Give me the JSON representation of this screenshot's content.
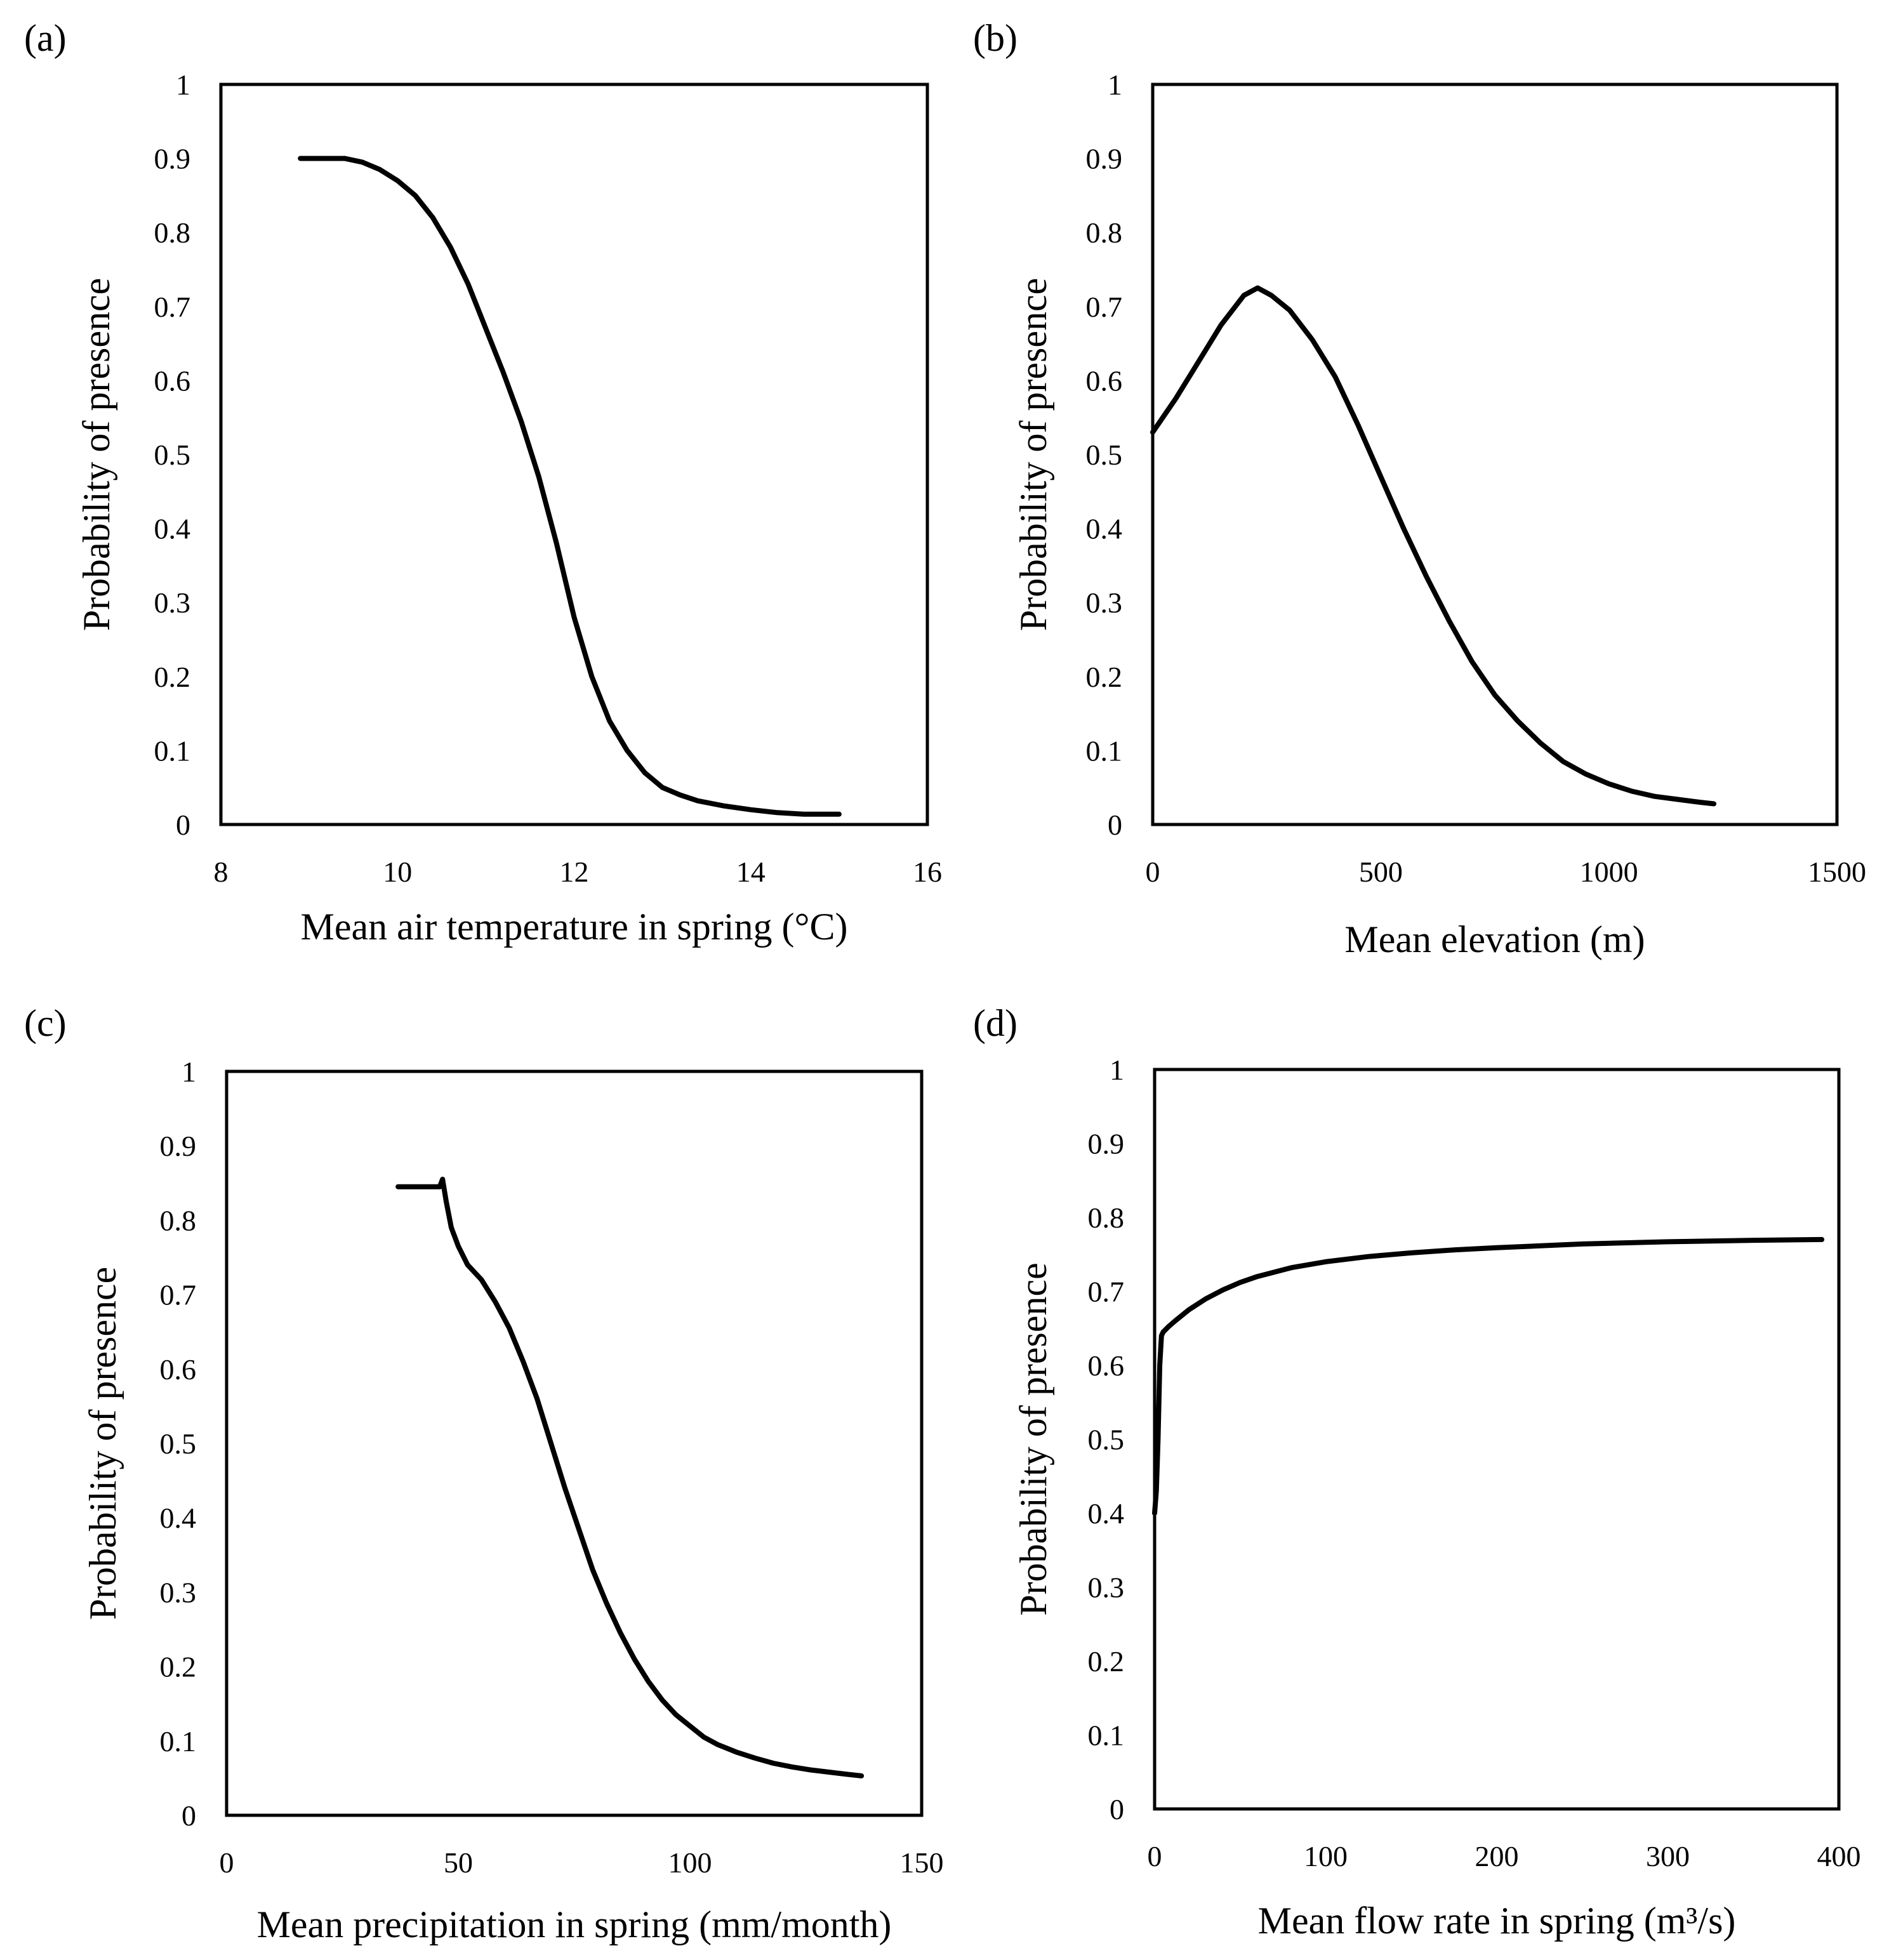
{
  "chart_data": [
    {
      "type": "line",
      "panel": "(a)",
      "title": "",
      "xlabel": "Mean air temperature in spring (°C)",
      "ylabel": "Probability of presence",
      "xlim": [
        8,
        16
      ],
      "ylim": [
        0,
        1
      ],
      "xticks": [
        "8",
        "10",
        "12",
        "14",
        "16"
      ],
      "yticks": [
        "0",
        "0.1",
        "0.2",
        "0.3",
        "0.4",
        "0.5",
        "0.6",
        "0.7",
        "0.8",
        "0.9",
        "1"
      ],
      "series": [
        {
          "name": "Probability of presence",
          "color": "#000000",
          "x": [
            8.9,
            9.2,
            9.4,
            9.6,
            9.8,
            10.0,
            10.2,
            10.4,
            10.6,
            10.8,
            11.0,
            11.2,
            11.4,
            11.6,
            11.8,
            12.0,
            12.2,
            12.4,
            12.6,
            12.8,
            13.0,
            13.2,
            13.4,
            13.7,
            14.0,
            14.3,
            14.6,
            15.0
          ],
          "y": [
            0.9,
            0.9,
            0.9,
            0.895,
            0.885,
            0.87,
            0.85,
            0.82,
            0.78,
            0.73,
            0.67,
            0.61,
            0.545,
            0.47,
            0.38,
            0.28,
            0.2,
            0.14,
            0.1,
            0.07,
            0.05,
            0.04,
            0.032,
            0.025,
            0.02,
            0.016,
            0.014,
            0.014
          ]
        }
      ]
    },
    {
      "type": "line",
      "panel": "(b)",
      "title": "",
      "xlabel": "Mean elevation (m)",
      "ylabel": "Probability of presence",
      "xlim": [
        0,
        1500
      ],
      "ylim": [
        0,
        1
      ],
      "xticks": [
        "0",
        "500",
        "1000",
        "1500"
      ],
      "yticks": [
        "0",
        "0.1",
        "0.2",
        "0.3",
        "0.4",
        "0.5",
        "0.6",
        "0.7",
        "0.8",
        "0.9",
        "1"
      ],
      "series": [
        {
          "name": "Probability of presence",
          "color": "#000000",
          "x": [
            0,
            50,
            100,
            150,
            200,
            230,
            260,
            300,
            350,
            400,
            450,
            500,
            550,
            600,
            650,
            700,
            750,
            800,
            850,
            900,
            950,
            1000,
            1050,
            1100,
            1150,
            1200,
            1230
          ],
          "y": [
            0.53,
            0.575,
            0.625,
            0.675,
            0.715,
            0.725,
            0.715,
            0.695,
            0.655,
            0.605,
            0.54,
            0.47,
            0.4,
            0.335,
            0.275,
            0.22,
            0.175,
            0.14,
            0.11,
            0.085,
            0.068,
            0.055,
            0.045,
            0.038,
            0.034,
            0.03,
            0.028
          ]
        }
      ]
    },
    {
      "type": "line",
      "panel": "(c)",
      "title": "",
      "xlabel": "Mean precipitation in spring (mm/month)",
      "ylabel": "Probability of presence",
      "xlim": [
        0,
        150
      ],
      "ylim": [
        0,
        1
      ],
      "xticks": [
        "0",
        "50",
        "100",
        "150"
      ],
      "yticks": [
        "0",
        "0.1",
        "0.2",
        "0.3",
        "0.4",
        "0.5",
        "0.6",
        "0.7",
        "0.8",
        "0.9",
        "1"
      ],
      "series": [
        {
          "name": "Probability of presence",
          "color": "#000000",
          "x": [
            37,
            40,
            44,
            46,
            46.6,
            47.4,
            48.5,
            50,
            52,
            55,
            58,
            61,
            64,
            67,
            70,
            73,
            76,
            79,
            82,
            85,
            88,
            91,
            94,
            97,
            100,
            103,
            106,
            110,
            114,
            118,
            122,
            126,
            130,
            134,
            137
          ],
          "y": [
            0.845,
            0.845,
            0.845,
            0.845,
            0.855,
            0.825,
            0.79,
            0.765,
            0.74,
            0.72,
            0.69,
            0.655,
            0.61,
            0.56,
            0.5,
            0.44,
            0.385,
            0.33,
            0.285,
            0.245,
            0.21,
            0.18,
            0.155,
            0.135,
            0.12,
            0.105,
            0.095,
            0.085,
            0.077,
            0.07,
            0.065,
            0.061,
            0.058,
            0.055,
            0.053
          ]
        }
      ]
    },
    {
      "type": "line",
      "panel": "(d)",
      "title": "",
      "xlabel": "Mean flow rate in spring (m³/s)",
      "ylabel": "Probability of presence",
      "xlim": [
        0,
        400
      ],
      "ylim": [
        0,
        1
      ],
      "xticks": [
        "0",
        "100",
        "200",
        "300",
        "400"
      ],
      "yticks": [
        "0",
        "0.1",
        "0.2",
        "0.3",
        "0.4",
        "0.5",
        "0.6",
        "0.7",
        "0.8",
        "0.9",
        "1"
      ],
      "series": [
        {
          "name": "Probability of presence",
          "color": "#000000",
          "x": [
            0,
            1,
            2,
            3,
            4,
            5,
            8,
            12,
            20,
            30,
            40,
            50,
            60,
            80,
            100,
            125,
            150,
            175,
            200,
            250,
            300,
            350,
            390
          ],
          "y": [
            0.4,
            0.43,
            0.5,
            0.6,
            0.64,
            0.645,
            0.652,
            0.66,
            0.675,
            0.69,
            0.702,
            0.712,
            0.72,
            0.732,
            0.74,
            0.747,
            0.752,
            0.756,
            0.759,
            0.764,
            0.767,
            0.769,
            0.77
          ]
        }
      ]
    }
  ]
}
